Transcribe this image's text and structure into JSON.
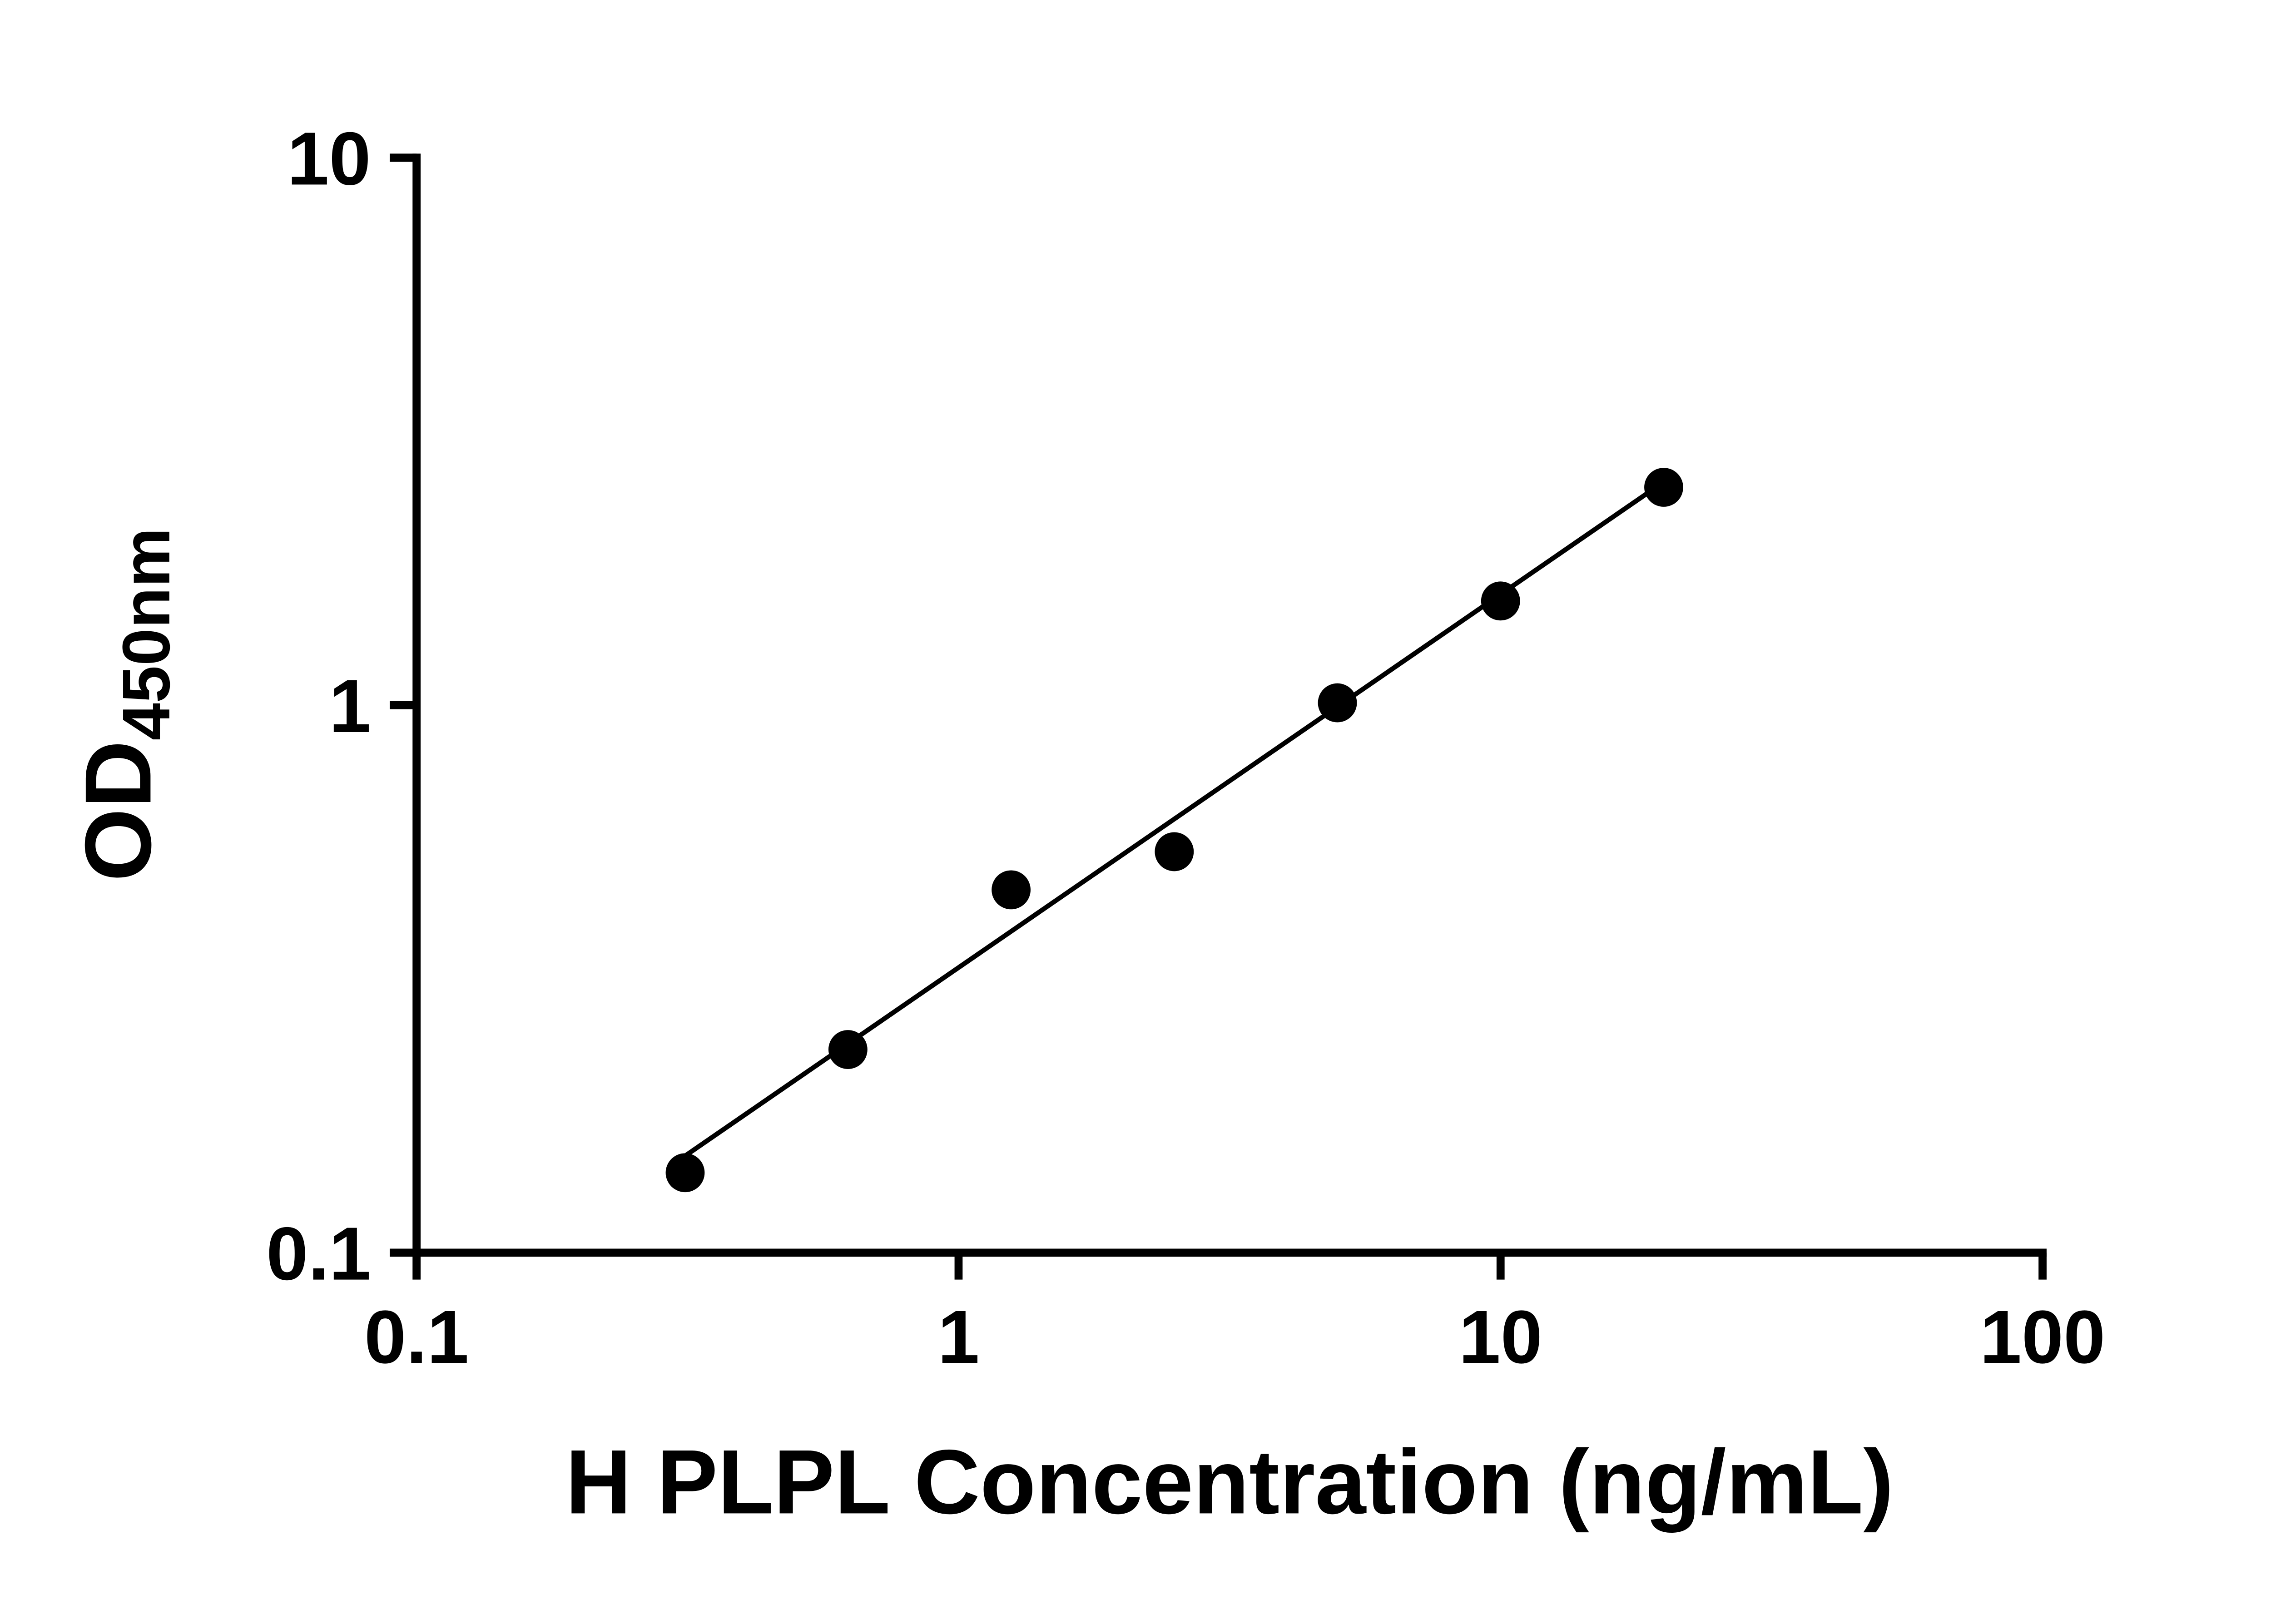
{
  "page": {
    "background": "#ffffff"
  },
  "chart": {
    "ylabel_main": "OD",
    "ylabel_sub": "450nm"
  },
  "chart_data": {
    "type": "scatter",
    "title": "",
    "xlabel": "H PLPL Concentration (ng/mL)",
    "ylabel": "OD450nm",
    "x_scale": "log",
    "y_scale": "log",
    "xlim": [
      0.1,
      100
    ],
    "ylim": [
      0.1,
      10
    ],
    "x_tick_values": [
      0.1,
      1,
      10,
      100
    ],
    "x_tick_labels": [
      "0.1",
      "1",
      "10",
      "100"
    ],
    "y_tick_values": [
      0.1,
      1,
      10
    ],
    "y_tick_labels": [
      "0.1",
      "1",
      "10"
    ],
    "grid": false,
    "legend": false,
    "marker_color": "#000000",
    "line_color": "#000000",
    "axis_color": "#000000",
    "points": {
      "x": [
        0.313,
        0.625,
        1.25,
        2.5,
        5,
        10,
        20
      ],
      "y": [
        0.14,
        0.235,
        0.46,
        0.54,
        1.01,
        1.55,
        2.5
      ]
    },
    "trendline": {
      "x1": 0.3,
      "y1": 0.146,
      "x2": 20.5,
      "y2": 2.6
    }
  }
}
